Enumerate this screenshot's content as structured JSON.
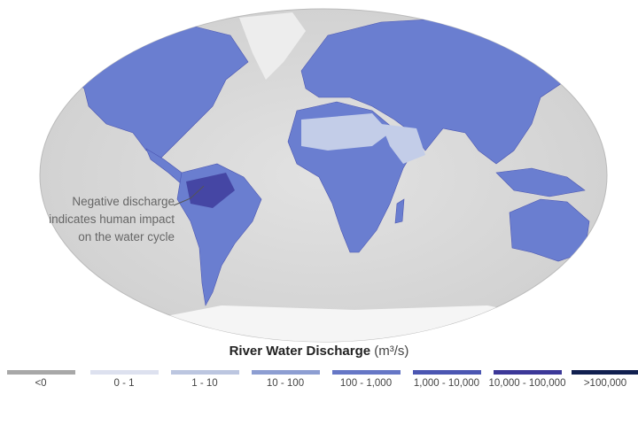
{
  "annotation": {
    "lines": [
      "Negative discharge",
      "indicates human impact",
      "on the water cycle"
    ]
  },
  "legend": {
    "title": "River Water Discharge",
    "unit": "(m³/s)",
    "bins": [
      {
        "label": "<0",
        "color": "#a8a8a8"
      },
      {
        "label": "0 - 1",
        "color": "#dde1ef"
      },
      {
        "label": "1 - 10",
        "color": "#bcc6e0"
      },
      {
        "label": "10 - 100",
        "color": "#8d9ed2"
      },
      {
        "label": "100 - 1,000",
        "color": "#6677c6"
      },
      {
        "label": "1,000 - 10,000",
        "color": "#4b56b2"
      },
      {
        "label": "10,000 - 100,000",
        "color": "#3c3898"
      },
      {
        "label": ">100,000",
        "color": "#112050"
      }
    ]
  },
  "colors": {
    "ocean": "#d9d9d9",
    "land": "#6a7ed0",
    "dry_land": "#c3cde8",
    "ice": "#f4f4f4"
  }
}
